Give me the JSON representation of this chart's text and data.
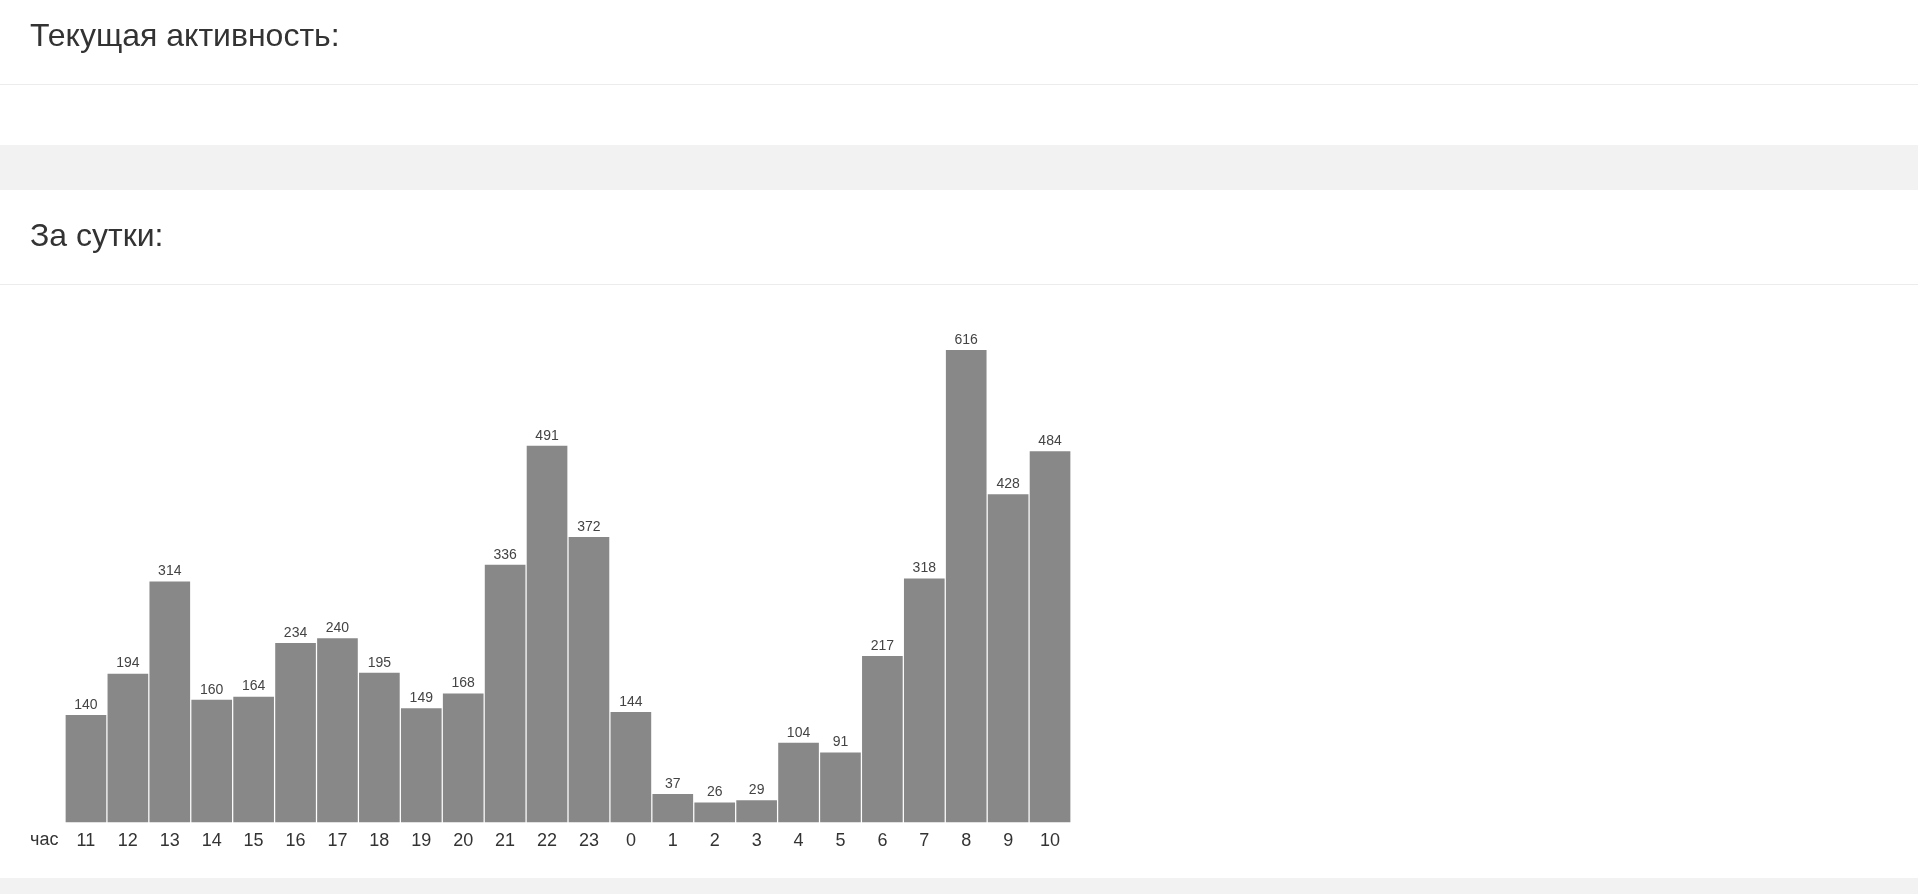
{
  "chart_data": {
    "type": "bar",
    "title": "Текущая активность:",
    "subtitle": "За сутки:",
    "xlabel": "час",
    "categories": [
      "11",
      "12",
      "13",
      "14",
      "15",
      "16",
      "17",
      "18",
      "19",
      "20",
      "21",
      "22",
      "23",
      "0",
      "1",
      "2",
      "3",
      "4",
      "5",
      "6",
      "7",
      "8",
      "9",
      "10"
    ],
    "values": [
      140,
      194,
      314,
      160,
      164,
      234,
      240,
      195,
      149,
      168,
      336,
      491,
      372,
      144,
      37,
      26,
      29,
      104,
      91,
      217,
      318,
      616,
      428,
      484
    ],
    "color": "#888888",
    "data_labels": true,
    "legend": false,
    "grid": false
  }
}
